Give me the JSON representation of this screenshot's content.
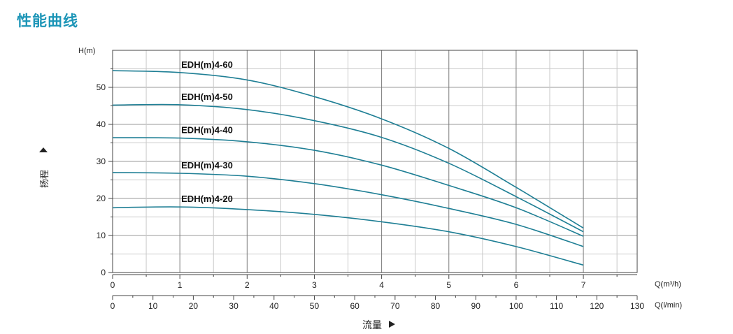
{
  "page": {
    "title": "性能曲线"
  },
  "colors": {
    "title": "#1c95b7",
    "curve": "#1f7f95",
    "grid": "#c9c9c9",
    "frame": "#444444",
    "text": "#222222"
  },
  "chart_data": {
    "type": "line",
    "title": "",
    "ylabel": "扬程",
    "y_unit": "H(m)",
    "ylim": [
      0,
      60
    ],
    "yticks": [
      0,
      10,
      20,
      30,
      40,
      50
    ],
    "xlabel": "流量",
    "x_axes": [
      {
        "unit": "Q(m³/h)",
        "lim": [
          0,
          7.8
        ],
        "ticks": [
          0,
          1,
          2,
          3,
          4,
          5,
          6,
          7
        ]
      },
      {
        "unit": "Q(l/min)",
        "lim": [
          0,
          130
        ],
        "ticks": [
          0,
          10,
          20,
          30,
          40,
          50,
          60,
          70,
          80,
          90,
          100,
          110,
          120,
          130
        ]
      }
    ],
    "grid": true,
    "series": [
      {
        "name": "EDH(m)4-60",
        "x": [
          0,
          1,
          2,
          3,
          4,
          5,
          6,
          7
        ],
        "y": [
          54.5,
          54,
          52,
          47.5,
          41.5,
          33.5,
          23,
          12
        ]
      },
      {
        "name": "EDH(m)4-50",
        "x": [
          0,
          1,
          2,
          3,
          4,
          5,
          6,
          7
        ],
        "y": [
          45.2,
          45.3,
          44,
          41,
          36.5,
          29.5,
          20.5,
          11
        ]
      },
      {
        "name": "EDH(m)4-40",
        "x": [
          0,
          1,
          2,
          3,
          4,
          5,
          6,
          7
        ],
        "y": [
          36.4,
          36.3,
          35.3,
          33,
          29,
          23.5,
          17.5,
          9.8
        ]
      },
      {
        "name": "EDH(m)4-30",
        "x": [
          0,
          1,
          2,
          3,
          4,
          5,
          6,
          7
        ],
        "y": [
          27,
          26.8,
          26,
          24,
          21,
          17.3,
          13,
          7
        ]
      },
      {
        "name": "EDH(m)4-20",
        "x": [
          0,
          1,
          2,
          3,
          4,
          5,
          6,
          7
        ],
        "y": [
          17.5,
          17.7,
          17,
          15.7,
          13.7,
          11,
          7,
          2
        ]
      }
    ]
  }
}
